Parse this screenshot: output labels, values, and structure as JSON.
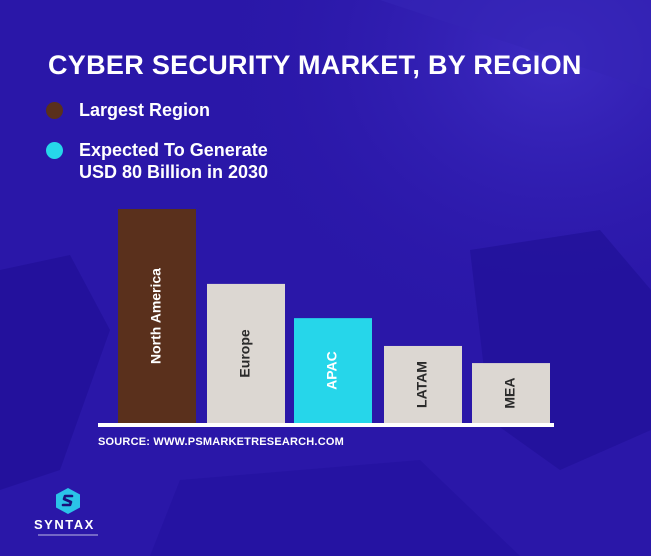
{
  "title": "CYBER SECURITY MARKET, BY REGION",
  "legend": [
    {
      "label": "Largest Region",
      "color": "#5a301c"
    },
    {
      "label": "Expected To Generate\nUSD 80 Billion in 2030",
      "color": "#26d6ea"
    }
  ],
  "source": "SOURCE: WWW.PSMARKETRESEARCH.COM",
  "brand": {
    "name": "SYNTAX",
    "icon": "syntax-logo-icon"
  },
  "colors": {
    "background": "#2a17a8",
    "bar_default": "#dcd7d2",
    "bar_largest": "#5a301c",
    "bar_highlight": "#26d6ea",
    "baseline": "#ffffff"
  },
  "chart_data": {
    "type": "bar",
    "title": "CYBER SECURITY MARKET, BY REGION",
    "xlabel": "",
    "ylabel": "",
    "categories": [
      "North America",
      "Europe",
      "APAC",
      "LATAM",
      "MEA"
    ],
    "values": [
      100,
      65,
      49,
      36,
      28
    ],
    "bar_colors": [
      "#5a301c",
      "#dcd7d2",
      "#26d6ea",
      "#dcd7d2",
      "#dcd7d2"
    ],
    "label_colors": [
      "#ffffff",
      "#2a2a2a",
      "#ffffff",
      "#2a2a2a",
      "#2a2a2a"
    ],
    "ylim": [
      0,
      100
    ],
    "grid": false,
    "value_labels": "inside bars, rotated vertical"
  }
}
